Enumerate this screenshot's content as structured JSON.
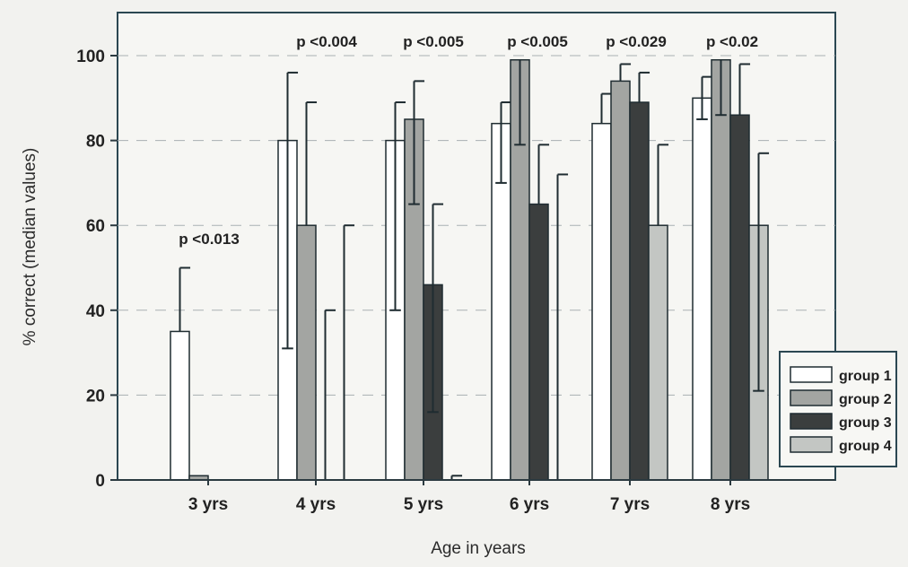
{
  "chart_data": {
    "type": "bar",
    "title": "",
    "xlabel": "Age in years",
    "ylabel": "% correct (median values)",
    "ylim": [
      0,
      100
    ],
    "yticks": [
      0,
      20,
      40,
      60,
      80,
      100
    ],
    "grid": true,
    "legend_position": "bottom-right",
    "categories": [
      "3 yrs",
      "4 yrs",
      "5 yrs",
      "6 yrs",
      "7 yrs",
      "8 yrs"
    ],
    "annotations": [
      "p <0.013",
      "p <0.004",
      "p <0.005",
      "p <0.005",
      "p <0.029",
      "p <0.02"
    ],
    "series": [
      {
        "name": "group 1",
        "color": "#ffffff",
        "values": [
          35,
          80,
          80,
          84,
          84,
          90
        ],
        "lower": [
          null,
          31,
          40,
          70,
          null,
          85
        ],
        "upper": [
          50,
          96,
          89,
          89,
          91,
          95
        ]
      },
      {
        "name": "group 2",
        "color": "#a3a5a2",
        "values": [
          1,
          60,
          85,
          99,
          94,
          99
        ],
        "lower": [
          null,
          null,
          65,
          79,
          null,
          86
        ],
        "upper": [
          null,
          89,
          94,
          null,
          98,
          null
        ]
      },
      {
        "name": "group 3",
        "color": "#3b3e3e",
        "values": [
          0,
          0,
          46,
          65,
          89,
          86
        ],
        "lower": [
          null,
          null,
          16,
          null,
          null,
          null
        ],
        "upper": [
          null,
          40,
          65,
          79,
          96,
          98
        ]
      },
      {
        "name": "group 4",
        "color": "#c3c6c3",
        "values": [
          0,
          0,
          0,
          0,
          60,
          60
        ],
        "lower": [
          null,
          null,
          null,
          null,
          null,
          21
        ],
        "upper": [
          null,
          60,
          1,
          72,
          79,
          77
        ]
      }
    ]
  }
}
